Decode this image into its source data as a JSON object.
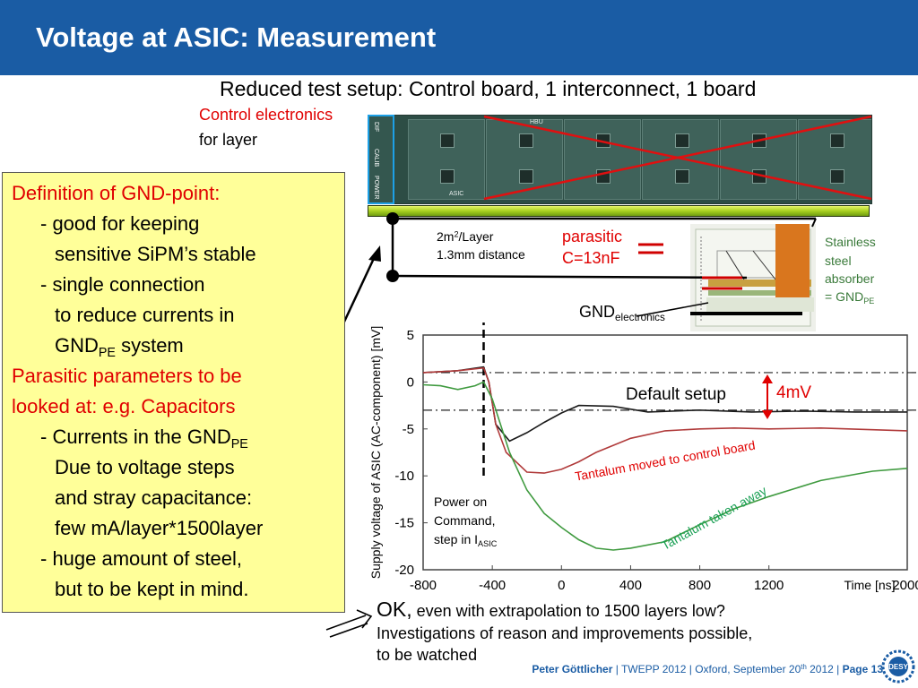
{
  "title": "Voltage at ASIC: Measurement",
  "subtitle": "Reduced test setup: Control board, 1 interconnect, 1 board",
  "labels": {
    "control_electronics": "Control electronics",
    "for_layer": "for layer",
    "area_per_layer_prefix": "2m",
    "area_per_layer_exp": "2",
    "area_per_layer_suffix": "/Layer",
    "distance": "1.3mm distance",
    "parasitic": "parasitic",
    "capacitance": "C=13nF",
    "gnd_main": "GND",
    "gnd_sub": "electronics",
    "stainless_1": "Stainless",
    "stainless_2": "steel",
    "stainless_3": "absorber",
    "stainless_4_main": "= GND",
    "stainless_4_sub": "PE",
    "default_setup": "Default setup",
    "delta": "4mV",
    "tantalum_moved": "Tantalum moved to control board",
    "tantalum_away": "Tantalum taken away",
    "power_on_1": "Power on",
    "power_on_2": "Command,",
    "power_on_3_main": "step in I",
    "power_on_3_sub": "ASIC",
    "board_calib": "CALIB",
    "board_power": "POWER",
    "board_dif": "DIF",
    "board_asic": "ASIC",
    "board_hbu": "HBU"
  },
  "box": {
    "line1": "Definition of GND-point:",
    "line2": "- good for keeping",
    "line3": "sensitive SiPM’s stable",
    "line4": "- single connection",
    "line5": "to reduce currents in",
    "line6_main": "GND",
    "line6_sub": "PE",
    "line6_rest": " system",
    "line7": "Parasitic parameters to be",
    "line8": "looked at: e.g. Capacitors",
    "line9_main": "- Currents in the GND",
    "line9_sub": "PE",
    "line10": "Due to voltage steps",
    "line11": "and stray capacitance:",
    "line12": "few mA/layer*1500layer",
    "line13": "- huge amount of steel,",
    "line14": "but to be kept in mind."
  },
  "conclusion": {
    "ok": "OK,",
    "rest": " even with extrapolation to 1500 layers low?",
    "line2": "Investigations of reason and improvements possible,",
    "line3": "to be watched"
  },
  "footer": {
    "author": "Peter Göttlicher",
    "event": "  |  TWEPP 2012 |  Oxford, September 20",
    "sup": "th",
    "year": " 2012  |  ",
    "page": "Page 13"
  },
  "logo_text": "DESY",
  "colors": {
    "title_bar": "#1a5ca4",
    "default_setup": "#1a1a1a",
    "tantalum_moved": "#b03a3a",
    "tantalum_away": "#3f9a3f",
    "highlight_red": "#e00000",
    "box_bg": "#ffff99"
  },
  "chart_data": {
    "type": "line",
    "xlabel": "Time [ns]",
    "ylabel": "Supply voltage of ASIC (AC-component) [mV]",
    "xlim": [
      -800,
      2000
    ],
    "ylim": [
      -20,
      5
    ],
    "xticks": [
      -800,
      -400,
      0,
      400,
      800,
      1200,
      2000
    ],
    "yticks": [
      5,
      0,
      -5,
      -10,
      -15,
      -20
    ],
    "grid": false,
    "reference_lines": [
      {
        "orientation": "horizontal",
        "y": 1
      },
      {
        "orientation": "horizontal",
        "y": -3
      },
      {
        "orientation": "vertical",
        "x": -450
      }
    ],
    "series": [
      {
        "name": "Default setup",
        "x": [
          -800,
          -600,
          -450,
          -420,
          -380,
          -300,
          -200,
          -100,
          0,
          100,
          300,
          500,
          800,
          1100,
          1400,
          1700,
          2000
        ],
        "y": [
          1,
          1.2,
          1.6,
          0,
          -4.5,
          -6.3,
          -5.4,
          -4.3,
          -3.3,
          -2.5,
          -2.6,
          -3.2,
          -3.0,
          -3.2,
          -3.1,
          -3.2,
          -3.2
        ]
      },
      {
        "name": "Tantalum moved to control board",
        "x": [
          -800,
          -600,
          -450,
          -420,
          -380,
          -320,
          -200,
          -100,
          0,
          100,
          200,
          400,
          600,
          800,
          1000,
          1200,
          1500,
          2000
        ],
        "y": [
          1,
          1.2,
          1.5,
          0,
          -4.5,
          -7.5,
          -9.6,
          -9.7,
          -9.3,
          -8.5,
          -7.5,
          -6.0,
          -5.2,
          -5.0,
          -4.9,
          -5.0,
          -4.9,
          -5.2
        ]
      },
      {
        "name": "Tantalum taken away",
        "x": [
          -800,
          -700,
          -600,
          -500,
          -450,
          -400,
          -300,
          -200,
          -100,
          0,
          100,
          200,
          300,
          400,
          600,
          800,
          1000,
          1200,
          1500,
          1800,
          2000
        ],
        "y": [
          -0.3,
          -0.4,
          -0.8,
          -0.4,
          0,
          -1.8,
          -7.5,
          -11.5,
          -14.0,
          -15.5,
          -16.8,
          -17.7,
          -17.9,
          -17.7,
          -17.0,
          -15.2,
          -13.5,
          -12.2,
          -10.5,
          -9.5,
          -9.2
        ]
      }
    ]
  }
}
